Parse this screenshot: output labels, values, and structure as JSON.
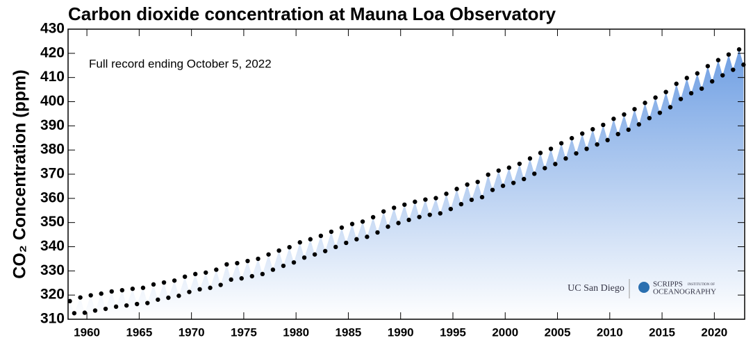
{
  "chart_data": {
    "type": "scatter",
    "title": "Carbon dioxide concentration at Mauna Loa Observatory",
    "annotation": "Full record ending October 5, 2022",
    "y_label": "CO₂ Concentration (ppm)",
    "logos": [
      "UC San Diego",
      "SCRIPPS",
      "INSTITUTION OF",
      "OCEANOGRAPHY"
    ],
    "color": "#000000",
    "area_color": "#6f9fe3",
    "xlim": [
      1958.2,
      2022.9
    ],
    "ylim": [
      310,
      430
    ],
    "xticks": [
      1960,
      1965,
      1970,
      1975,
      1980,
      1985,
      1990,
      1995,
      2000,
      2005,
      2010,
      2015,
      2020
    ],
    "yticks": [
      310,
      320,
      330,
      340,
      350,
      360,
      370,
      380,
      390,
      400,
      410,
      420,
      430
    ],
    "x": [
      1958.37,
      1958.79,
      1959.37,
      1959.79,
      1960.37,
      1960.79,
      1961.37,
      1961.79,
      1962.37,
      1962.79,
      1963.37,
      1963.79,
      1964.37,
      1964.79,
      1965.37,
      1965.79,
      1966.37,
      1966.79,
      1967.37,
      1967.79,
      1968.37,
      1968.79,
      1969.37,
      1969.79,
      1970.37,
      1970.79,
      1971.37,
      1971.79,
      1972.37,
      1972.79,
      1973.37,
      1973.79,
      1974.37,
      1974.79,
      1975.37,
      1975.79,
      1976.37,
      1976.79,
      1977.37,
      1977.79,
      1978.37,
      1978.79,
      1979.37,
      1979.79,
      1980.37,
      1980.79,
      1981.37,
      1981.79,
      1982.37,
      1982.79,
      1983.37,
      1983.79,
      1984.37,
      1984.79,
      1985.37,
      1985.79,
      1986.37,
      1986.79,
      1987.37,
      1987.79,
      1988.37,
      1988.79,
      1989.37,
      1989.79,
      1990.37,
      1990.79,
      1991.37,
      1991.79,
      1992.37,
      1992.79,
      1993.37,
      1993.79,
      1994.37,
      1994.79,
      1995.37,
      1995.79,
      1996.37,
      1996.79,
      1997.37,
      1997.79,
      1998.37,
      1998.79,
      1999.37,
      1999.79,
      2000.37,
      2000.79,
      2001.37,
      2001.79,
      2002.37,
      2002.79,
      2003.37,
      2003.79,
      2004.37,
      2004.79,
      2005.37,
      2005.79,
      2006.37,
      2006.79,
      2007.37,
      2007.79,
      2008.37,
      2008.79,
      2009.37,
      2009.79,
      2010.37,
      2010.79,
      2011.37,
      2011.79,
      2012.37,
      2012.79,
      2013.37,
      2013.79,
      2014.37,
      2014.79,
      2015.37,
      2015.79,
      2016.37,
      2016.79,
      2017.37,
      2017.79,
      2018.37,
      2018.79,
      2019.37,
      2019.79,
      2020.37,
      2020.79,
      2021.37,
      2021.79,
      2022.37,
      2022.79
    ],
    "values": [
      317.5,
      312.5,
      319.0,
      312.7,
      319.9,
      313.6,
      320.6,
      314.3,
      321.5,
      315.2,
      322.0,
      315.7,
      322.6,
      316.3,
      323.0,
      316.7,
      324.4,
      318.1,
      325.2,
      318.9,
      326.0,
      319.7,
      327.6,
      321.3,
      328.7,
      322.4,
      329.3,
      323.0,
      330.5,
      324.2,
      332.7,
      326.4,
      333.2,
      326.9,
      334.1,
      327.8,
      335.0,
      328.7,
      336.8,
      330.5,
      338.4,
      332.1,
      339.8,
      333.5,
      341.8,
      335.5,
      343.1,
      336.8,
      344.5,
      338.2,
      346.2,
      339.9,
      347.9,
      341.6,
      349.4,
      343.1,
      350.4,
      344.1,
      352.2,
      345.9,
      354.6,
      348.3,
      356.1,
      349.8,
      357.4,
      351.1,
      358.6,
      352.3,
      359.5,
      353.2,
      360.1,
      353.8,
      361.9,
      355.6,
      363.9,
      357.6,
      365.7,
      359.4,
      366.8,
      360.5,
      369.8,
      363.5,
      371.5,
      365.2,
      372.7,
      366.4,
      374.3,
      368.0,
      376.5,
      370.2,
      378.8,
      372.5,
      380.5,
      374.2,
      382.8,
      376.5,
      384.9,
      378.6,
      386.8,
      380.5,
      388.6,
      382.3,
      390.4,
      384.1,
      392.9,
      386.6,
      394.7,
      388.4,
      396.9,
      390.6,
      399.5,
      393.2,
      401.7,
      395.4,
      404.0,
      397.7,
      407.4,
      401.1,
      409.8,
      403.5,
      411.7,
      405.4,
      414.7,
      408.4,
      417.2,
      410.9,
      419.5,
      413.2,
      421.6,
      415.3
    ]
  }
}
